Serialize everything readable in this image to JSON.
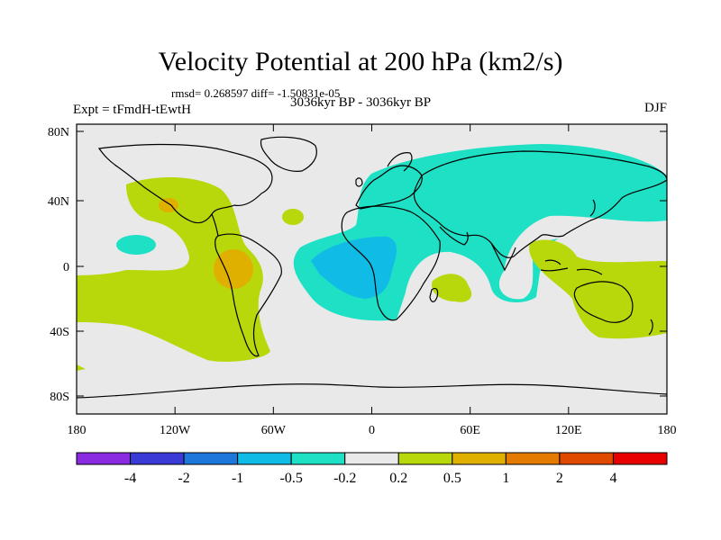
{
  "title": "Velocity Potential at 200 hPa (km2/s)",
  "stats": "rmsd= 0.268597 diff= -1.50831e-05",
  "period": "3036kyr BP - 3036kyr BP",
  "experiment": "Expt = tFmdH-tEwtH",
  "season": "DJF",
  "map": {
    "lon_ticks": [
      "180",
      "120W",
      "60W",
      "0",
      "60E",
      "120E",
      "180"
    ],
    "lat_ticks": [
      "80N",
      "40N",
      "0",
      "40S",
      "80S"
    ],
    "lon_range": [
      -180,
      180
    ],
    "lat_range": [
      -90,
      90
    ]
  },
  "colorbar": {
    "colors": [
      "#8a2be2",
      "#3a3ad6",
      "#1e78dc",
      "#10bbe6",
      "#1de0c4",
      "#e9e9e9",
      "#b8d80c",
      "#e0b000",
      "#e57a00",
      "#e04a00",
      "#e80000"
    ],
    "labels": [
      "-4",
      "-2",
      "-1",
      "-0.5",
      "-0.2",
      "0.2",
      "0.5",
      "1",
      "2",
      "4"
    ]
  },
  "regions": [
    {
      "name": "eurasia-negative",
      "level": "-0.2 to -0.5"
    },
    {
      "name": "atlantic-africa-negative",
      "level": "-0.5 to -1"
    },
    {
      "name": "pacific-positive",
      "level": "0.2 to 0.5"
    },
    {
      "name": "andes-positive",
      "level": "0.5 to 1"
    }
  ]
}
